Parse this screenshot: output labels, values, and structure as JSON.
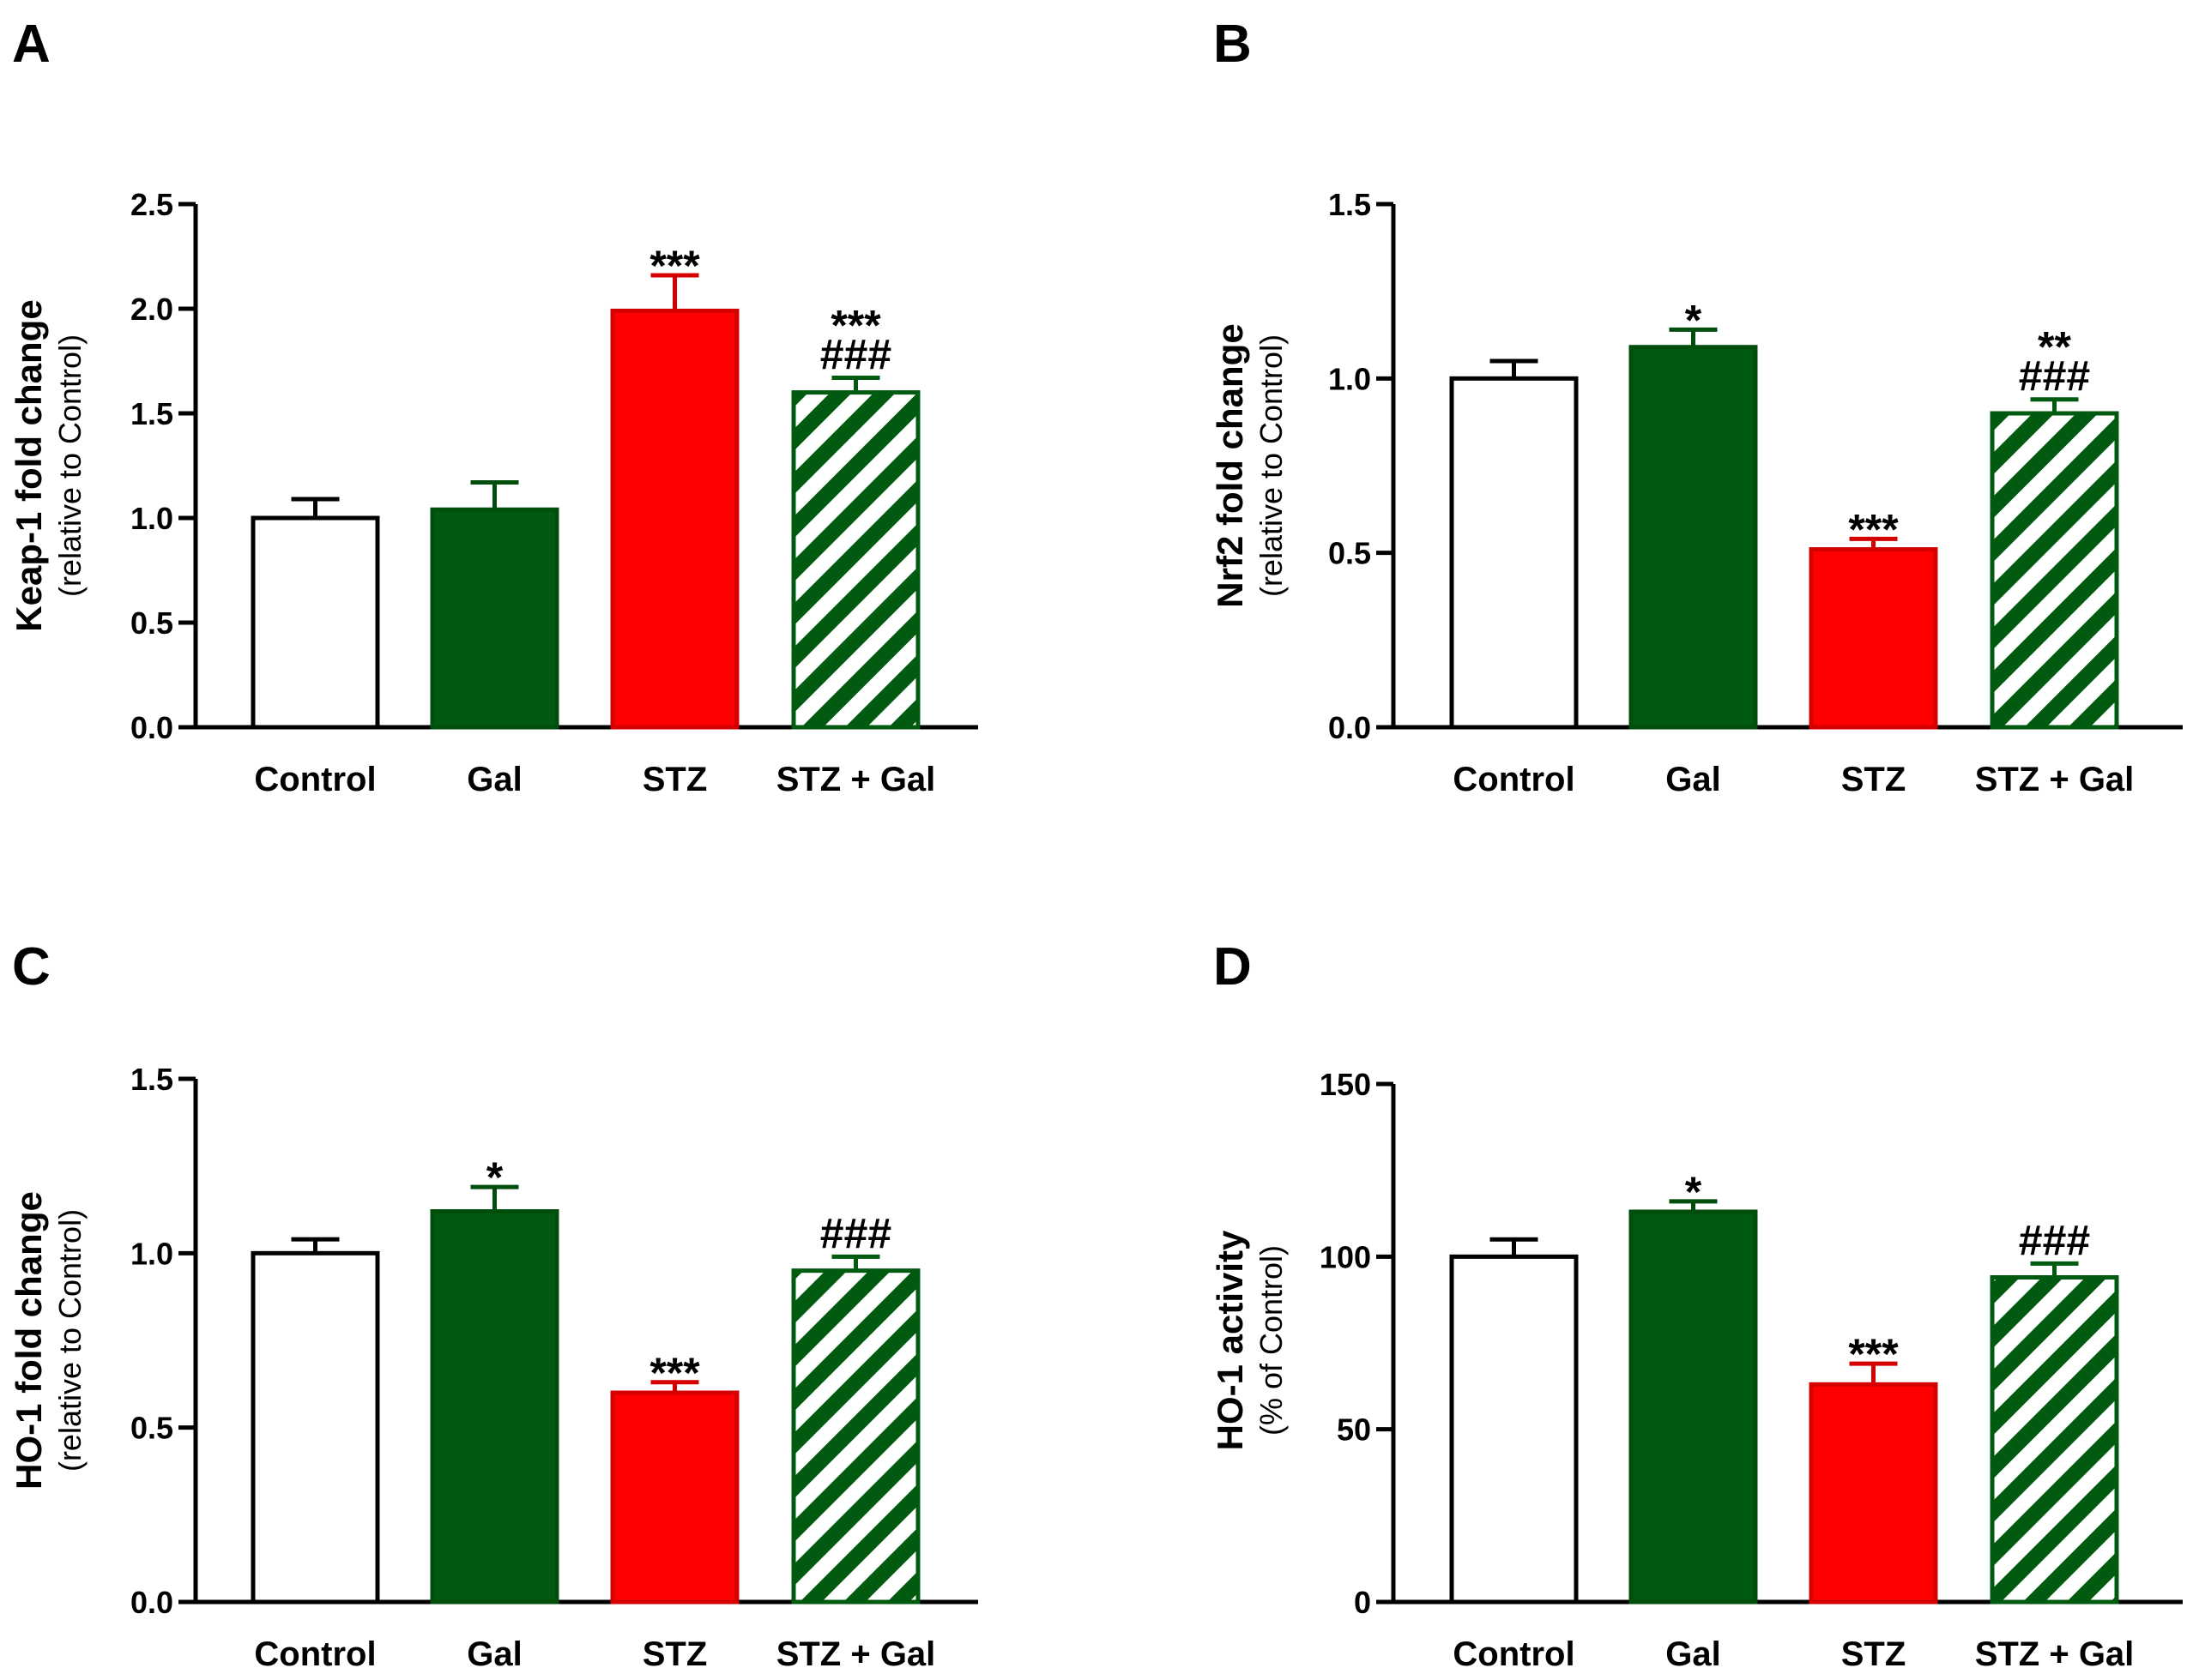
{
  "chart_data": [
    {
      "panel": "A",
      "type": "bar",
      "categories": [
        "Control",
        "Gal",
        "STZ",
        "STZ + Gal"
      ],
      "values": [
        1.0,
        1.04,
        1.99,
        1.6
      ],
      "errors": [
        0.09,
        0.13,
        0.17,
        0.07
      ],
      "ylabel": "Keap-1 fold change",
      "ylabel_sub": "(relative to Control)",
      "ylim": [
        0,
        2.5
      ],
      "yticks": [
        0.0,
        0.5,
        1.0,
        1.5,
        2.0,
        2.5
      ],
      "ytick_labels": [
        "0.0",
        "0.5",
        "1.0",
        "1.5",
        "2.0",
        "2.5"
      ],
      "annotations": [
        {
          "category": "STZ",
          "lines": [
            "***"
          ]
        },
        {
          "category": "STZ + Gal",
          "lines": [
            "***",
            "###"
          ]
        }
      ]
    },
    {
      "panel": "B",
      "type": "bar",
      "categories": [
        "Control",
        "Gal",
        "STZ",
        "STZ + Gal"
      ],
      "values": [
        1.0,
        1.09,
        0.51,
        0.9
      ],
      "errors": [
        0.05,
        0.05,
        0.03,
        0.04
      ],
      "ylabel": "Nrf2 fold change",
      "ylabel_sub": "(relative to Control)",
      "ylim": [
        0,
        1.5
      ],
      "yticks": [
        0.0,
        0.5,
        1.0,
        1.5
      ],
      "ytick_labels": [
        "0.0",
        "0.5",
        "1.0",
        "1.5"
      ],
      "annotations": [
        {
          "category": "Gal",
          "lines": [
            "*"
          ]
        },
        {
          "category": "STZ",
          "lines": [
            "***"
          ]
        },
        {
          "category": "STZ + Gal",
          "lines": [
            "**",
            "###"
          ]
        }
      ]
    },
    {
      "panel": "C",
      "type": "bar",
      "categories": [
        "Control",
        "Gal",
        "STZ",
        "STZ + Gal"
      ],
      "values": [
        1.0,
        1.12,
        0.6,
        0.95
      ],
      "errors": [
        0.04,
        0.07,
        0.03,
        0.04
      ],
      "ylabel": "HO-1 fold change",
      "ylabel_sub": "(relative to Control)",
      "ylim": [
        0,
        1.5
      ],
      "yticks": [
        0.0,
        0.5,
        1.0,
        1.5
      ],
      "ytick_labels": [
        "0.0",
        "0.5",
        "1.0",
        "1.5"
      ],
      "annotations": [
        {
          "category": "Gal",
          "lines": [
            "*"
          ]
        },
        {
          "category": "STZ",
          "lines": [
            "***"
          ]
        },
        {
          "category": "STZ + Gal",
          "lines": [
            "###"
          ]
        }
      ]
    },
    {
      "panel": "D",
      "type": "bar",
      "categories": [
        "Control",
        "Gal",
        "STZ",
        "STZ + Gal"
      ],
      "values": [
        100,
        113,
        63,
        94
      ],
      "errors": [
        5,
        3,
        6,
        4
      ],
      "ylabel": "HO-1 activity",
      "ylabel_sub": "(% of Control)",
      "ylim": [
        0,
        150
      ],
      "yticks": [
        0,
        50,
        100,
        150
      ],
      "ytick_labels": [
        "0",
        "50",
        "100",
        "150"
      ],
      "annotations": [
        {
          "category": "Gal",
          "lines": [
            "*"
          ]
        },
        {
          "category": "STZ",
          "lines": [
            "***"
          ]
        },
        {
          "category": "STZ + Gal",
          "lines": [
            "###"
          ]
        }
      ]
    }
  ],
  "bar_styles": [
    {
      "fill": "#ffffff",
      "stroke": "#000000",
      "pattern": "none"
    },
    {
      "fill": "#005a0f",
      "stroke": "#004d0c",
      "pattern": "none"
    },
    {
      "fill": "#ff0000",
      "stroke": "#d40000",
      "pattern": "none"
    },
    {
      "fill": "#ffffff",
      "stroke": "#005a0f",
      "pattern": "hatch"
    }
  ]
}
